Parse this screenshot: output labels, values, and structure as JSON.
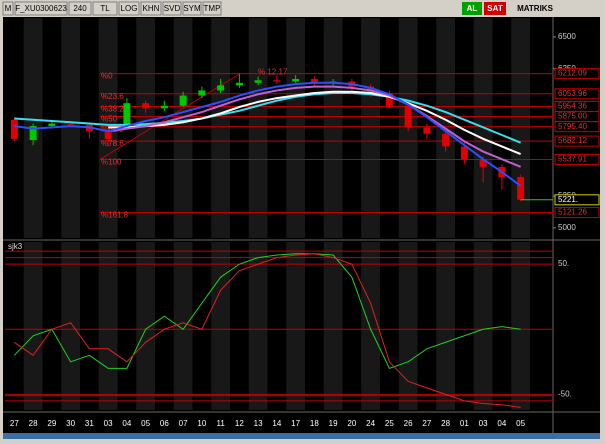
{
  "toolbar": {
    "items": [
      "M",
      "F_XU0300623",
      "240",
      "TL",
      "LOG",
      "KHN",
      "SVD",
      "SYM",
      "TMP"
    ],
    "buy": "AL",
    "sell": "SAT",
    "brand": "MATRIKS"
  },
  "chart_data": [
    {
      "type": "candlestick",
      "x": [
        "27",
        "28",
        "29",
        "30",
        "31",
        "03",
        "04",
        "05",
        "06",
        "07",
        "10",
        "11",
        "12",
        "13",
        "14",
        "17",
        "18",
        "19",
        "20",
        "24",
        "25",
        "26",
        "27",
        "28",
        "01",
        "03",
        "04",
        "05"
      ],
      "open": [
        5850,
        5690,
        5800,
        5820,
        5810,
        5760,
        5810,
        5980,
        5940,
        5960,
        6040,
        6080,
        6120,
        6140,
        6160,
        6150,
        6170,
        6140,
        6150,
        6110,
        6060,
        5960,
        5790,
        5740,
        5640,
        5540,
        5480,
        5400
      ],
      "high": [
        5870,
        5820,
        5840,
        5840,
        5830,
        5780,
        6020,
        6000,
        6000,
        6070,
        6110,
        6170,
        6212,
        6190,
        6200,
        6200,
        6190,
        6170,
        6170,
        6130,
        6080,
        5980,
        5820,
        5760,
        5670,
        5560,
        5500,
        5420
      ],
      "low": [
        5680,
        5650,
        5780,
        5790,
        5700,
        5640,
        5790,
        5900,
        5920,
        5950,
        6020,
        6060,
        6100,
        6120,
        6130,
        6140,
        6110,
        6120,
        6080,
        6030,
        5940,
        5760,
        5700,
        5600,
        5500,
        5360,
        5300,
        5210
      ],
      "close": [
        5700,
        5800,
        5820,
        5810,
        5760,
        5700,
        5980,
        5940,
        5960,
        6040,
        6080,
        6120,
        6140,
        6160,
        6150,
        6170,
        6140,
        6150,
        6110,
        6060,
        5960,
        5790,
        5740,
        5640,
        5540,
        5480,
        5400,
        5221
      ],
      "up_color": "#00c800",
      "down_color": "#e00000",
      "series": [
        {
          "color": "#33e0f0",
          "values": [
            5860,
            5850,
            5840,
            5830,
            5820,
            5810,
            5810,
            5815,
            5825,
            5840,
            5860,
            5890,
            5920,
            5960,
            6000,
            6030,
            6050,
            6060,
            6060,
            6050,
            6030,
            6000,
            5960,
            5910,
            5850,
            5790,
            5730,
            5670
          ]
        },
        {
          "color": "#ffffff",
          "values": [
            null,
            null,
            null,
            null,
            null,
            5790,
            5790,
            5800,
            5810,
            5830,
            5860,
            5900,
            5950,
            5990,
            6020,
            6040,
            6060,
            6070,
            6070,
            6060,
            6030,
            5980,
            5920,
            5850,
            5770,
            5700,
            5640,
            5580
          ]
        },
        {
          "color": "#c060d0",
          "values": [
            null,
            null,
            null,
            null,
            null,
            5760,
            5780,
            5800,
            5830,
            5870,
            5910,
            5960,
            6010,
            6050,
            6080,
            6100,
            6110,
            6110,
            6100,
            6080,
            6040,
            5970,
            5880,
            5780,
            5680,
            5600,
            5540,
            5480
          ]
        },
        {
          "color": "#2850ff",
          "values": [
            5800,
            5780,
            5790,
            5800,
            5790,
            5760,
            5800,
            5840,
            5870,
            5910,
            5950,
            5990,
            6040,
            6080,
            6110,
            6130,
            6140,
            6140,
            6130,
            6100,
            6050,
            5970,
            5870,
            5760,
            5650,
            5540,
            5440,
            5330
          ]
        }
      ],
      "fib": [
        {
          "label": "%0",
          "value": 6212.09,
          "value_label": "6212.09"
        },
        {
          "label": "%23.6",
          "value": 6053.96,
          "value_label": "6053.96"
        },
        {
          "label": "%38.2",
          "value": 5954.36,
          "value_label": "5954.36"
        },
        {
          "label": "%50",
          "value": 5875,
          "value_label": "5875.00"
        },
        {
          "label": "%61.8",
          "value": 5795.4,
          "value_label": "5795.40"
        },
        {
          "label": "%78.6",
          "value": 5682.12,
          "value_label": "5682.12"
        },
        {
          "label": "%100",
          "value": 5537.91,
          "value_label": "5537.91"
        },
        {
          "label": "%161.8",
          "value": 5121.26,
          "value_label": "5121.26"
        }
      ],
      "last": {
        "value": 5221,
        "label": "5221."
      },
      "annotation": "% 12.17",
      "ylim": [
        4921,
        6649
      ],
      "yticks": [
        5000,
        5250,
        6250,
        6500
      ]
    },
    {
      "type": "line",
      "title": "sjk3",
      "series": [
        {
          "color": "#20d020",
          "values": [
            -20,
            -5,
            0,
            -25,
            -20,
            -30,
            -30,
            0,
            10,
            0,
            20,
            40,
            50,
            55,
            57,
            58,
            58,
            57,
            40,
            0,
            -30,
            -25,
            -15,
            -10,
            -5,
            0,
            2,
            0
          ]
        },
        {
          "color": "#e02020",
          "values": [
            -10,
            -20,
            0,
            5,
            -15,
            -15,
            -25,
            -10,
            0,
            5,
            0,
            30,
            45,
            50,
            55,
            57,
            58,
            55,
            50,
            20,
            -25,
            -40,
            -45,
            -50,
            -55,
            -57,
            -58,
            -60
          ]
        }
      ],
      "levels": [
        60,
        55,
        0,
        -51,
        -55
      ],
      "ylim": [
        -62,
        67
      ],
      "yticks": [
        {
          "value": 50,
          "label": "50."
        },
        {
          "value": -50,
          "label": "-50."
        }
      ]
    }
  ]
}
